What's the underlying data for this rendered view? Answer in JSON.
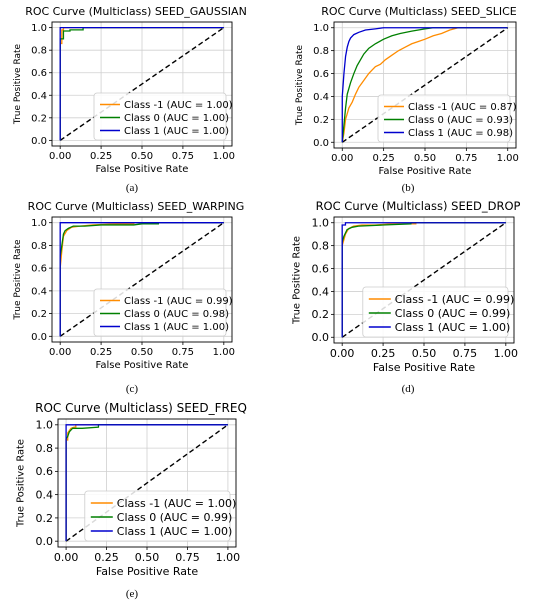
{
  "chart_data": [
    {
      "type": "line",
      "caption": "(a)",
      "title": "ROC Curve (Multiclass) SEED_GAUSSIAN",
      "xlabel": "False Positive Rate",
      "ylabel": "True Positive Rate",
      "xlim": [
        0,
        1
      ],
      "ylim": [
        0,
        1
      ],
      "xticks": [
        "0.00",
        "0.25",
        "0.50",
        "0.75",
        "1.00"
      ],
      "yticks": [
        "0.0",
        "0.2",
        "0.4",
        "0.6",
        "0.8",
        "1.0"
      ],
      "grid": true,
      "legend_position": "lower-right",
      "diagonal": true,
      "series": [
        {
          "name": "Class -1 (AUC = 1.00)",
          "color": "#ff8c00",
          "points": [
            [
              0,
              0
            ],
            [
              0,
              0.86
            ],
            [
              0.01,
              0.86
            ],
            [
              0.01,
              0.98
            ],
            [
              0.02,
              0.98
            ],
            [
              0.02,
              1.0
            ],
            [
              1,
              1
            ]
          ]
        },
        {
          "name": "Class 0 (AUC = 1.00)",
          "color": "#008000",
          "points": [
            [
              0,
              0
            ],
            [
              0,
              0.9
            ],
            [
              0.02,
              0.9
            ],
            [
              0.02,
              0.97
            ],
            [
              0.06,
              0.97
            ],
            [
              0.06,
              0.98
            ],
            [
              0.14,
              0.98
            ],
            [
              0.14,
              1.0
            ],
            [
              1,
              1
            ]
          ]
        },
        {
          "name": "Class 1 (AUC = 1.00)",
          "color": "#0000cd",
          "points": [
            [
              0,
              0
            ],
            [
              0,
              1.0
            ],
            [
              1,
              1
            ]
          ]
        }
      ]
    },
    {
      "type": "line",
      "caption": "(b)",
      "title": "ROC Curve (Multiclass) SEED_SLICE",
      "xlabel": "False Positive Rate",
      "ylabel": "True Positive Rate",
      "xlim": [
        0,
        1
      ],
      "ylim": [
        0,
        1
      ],
      "xticks": [
        "0.00",
        "0.25",
        "0.50",
        "0.75",
        "1.00"
      ],
      "yticks": [
        "0.0",
        "0.2",
        "0.4",
        "0.6",
        "0.8",
        "1.0"
      ],
      "grid": true,
      "legend_position": "lower-right",
      "diagonal": true,
      "series": [
        {
          "name": "Class -1 (AUC = 0.87)",
          "color": "#ff8c00",
          "points": [
            [
              0,
              0
            ],
            [
              0.01,
              0.08
            ],
            [
              0.02,
              0.2
            ],
            [
              0.04,
              0.3
            ],
            [
              0.06,
              0.35
            ],
            [
              0.08,
              0.42
            ],
            [
              0.1,
              0.48
            ],
            [
              0.12,
              0.52
            ],
            [
              0.14,
              0.56
            ],
            [
              0.16,
              0.6
            ],
            [
              0.18,
              0.63
            ],
            [
              0.2,
              0.66
            ],
            [
              0.23,
              0.68
            ],
            [
              0.26,
              0.72
            ],
            [
              0.3,
              0.76
            ],
            [
              0.34,
              0.8
            ],
            [
              0.38,
              0.83
            ],
            [
              0.42,
              0.86
            ],
            [
              0.46,
              0.88
            ],
            [
              0.5,
              0.9
            ],
            [
              0.55,
              0.93
            ],
            [
              0.6,
              0.95
            ],
            [
              0.65,
              0.98
            ],
            [
              0.7,
              1.0
            ],
            [
              1,
              1
            ]
          ]
        },
        {
          "name": "Class 0 (AUC = 0.93)",
          "color": "#008000",
          "points": [
            [
              0,
              0
            ],
            [
              0.01,
              0.15
            ],
            [
              0.02,
              0.3
            ],
            [
              0.03,
              0.42
            ],
            [
              0.05,
              0.52
            ],
            [
              0.07,
              0.6
            ],
            [
              0.09,
              0.67
            ],
            [
              0.11,
              0.72
            ],
            [
              0.13,
              0.77
            ],
            [
              0.16,
              0.82
            ],
            [
              0.2,
              0.86
            ],
            [
              0.25,
              0.9
            ],
            [
              0.3,
              0.93
            ],
            [
              0.35,
              0.95
            ],
            [
              0.42,
              0.97
            ],
            [
              0.5,
              0.99
            ],
            [
              0.55,
              1.0
            ],
            [
              1,
              1
            ]
          ]
        },
        {
          "name": "Class 1 (AUC = 0.98)",
          "color": "#0000cd",
          "points": [
            [
              0,
              0
            ],
            [
              0,
              0.4
            ],
            [
              0.01,
              0.6
            ],
            [
              0.02,
              0.75
            ],
            [
              0.03,
              0.83
            ],
            [
              0.04,
              0.88
            ],
            [
              0.05,
              0.91
            ],
            [
              0.07,
              0.94
            ],
            [
              0.1,
              0.96
            ],
            [
              0.14,
              0.98
            ],
            [
              0.2,
              0.99
            ],
            [
              0.25,
              1.0
            ],
            [
              1,
              1
            ]
          ]
        }
      ]
    },
    {
      "type": "line",
      "caption": "(c)",
      "title": "ROC Curve (Multiclass) SEED_WARPING",
      "xlabel": "False Positive Rate",
      "ylabel": "True Positive Rate",
      "xlim": [
        0,
        1
      ],
      "ylim": [
        0,
        1
      ],
      "xticks": [
        "0.00",
        "0.25",
        "0.50",
        "0.75",
        "1.00"
      ],
      "yticks": [
        "0.0",
        "0.2",
        "0.4",
        "0.6",
        "0.8",
        "1.0"
      ],
      "grid": true,
      "legend_position": "lower-right",
      "diagonal": true,
      "series": [
        {
          "name": "Class -1 (AUC = 0.99)",
          "color": "#ff8c00",
          "points": [
            [
              0,
              0
            ],
            [
              0,
              0.6
            ],
            [
              0.01,
              0.75
            ],
            [
              0.02,
              0.88
            ],
            [
              0.04,
              0.93
            ],
            [
              0.07,
              0.96
            ],
            [
              0.12,
              0.97
            ],
            [
              0.2,
              0.98
            ],
            [
              0.35,
              0.99
            ],
            [
              0.45,
              0.99
            ],
            [
              0.45,
              1.0
            ],
            [
              1,
              1
            ]
          ]
        },
        {
          "name": "Class 0 (AUC = 0.98)",
          "color": "#008000",
          "points": [
            [
              0,
              0
            ],
            [
              0,
              0.7
            ],
            [
              0.01,
              0.8
            ],
            [
              0.02,
              0.9
            ],
            [
              0.03,
              0.93
            ],
            [
              0.05,
              0.95
            ],
            [
              0.08,
              0.97
            ],
            [
              0.15,
              0.97
            ],
            [
              0.25,
              0.98
            ],
            [
              0.45,
              0.98
            ],
            [
              0.5,
              0.99
            ],
            [
              0.6,
              0.99
            ],
            [
              0.6,
              1.0
            ],
            [
              1,
              1
            ]
          ]
        },
        {
          "name": "Class 1 (AUC = 1.00)",
          "color": "#0000cd",
          "points": [
            [
              0,
              0
            ],
            [
              0,
              1.0
            ],
            [
              1,
              1
            ]
          ]
        }
      ]
    },
    {
      "type": "line",
      "caption": "(d)",
      "title": "ROC Curve (Multiclass) SEED_DROP",
      "xlabel": "False Positive Rate",
      "ylabel": "True Positive Rate",
      "xlim": [
        0,
        1
      ],
      "ylim": [
        0,
        1
      ],
      "xticks": [
        "0.00",
        "0.25",
        "0.50",
        "0.75",
        "1.00"
      ],
      "yticks": [
        "0.0",
        "0.2",
        "0.4",
        "0.6",
        "0.8",
        "1.0"
      ],
      "grid": true,
      "legend_position": "lower-right",
      "diagonal": true,
      "series": [
        {
          "name": "Class -1 (AUC = 0.99)",
          "color": "#ff8c00",
          "points": [
            [
              0,
              0
            ],
            [
              0,
              0.8
            ],
            [
              0.01,
              0.85
            ],
            [
              0.02,
              0.9
            ],
            [
              0.04,
              0.95
            ],
            [
              0.07,
              0.97
            ],
            [
              0.12,
              0.98
            ],
            [
              0.2,
              0.98
            ],
            [
              0.3,
              0.99
            ],
            [
              0.45,
              0.99
            ],
            [
              0.45,
              1.0
            ],
            [
              1,
              1
            ]
          ]
        },
        {
          "name": "Class 0 (AUC = 0.99)",
          "color": "#008000",
          "points": [
            [
              0,
              0
            ],
            [
              0,
              0.83
            ],
            [
              0.01,
              0.88
            ],
            [
              0.03,
              0.94
            ],
            [
              0.06,
              0.96
            ],
            [
              0.1,
              0.97
            ],
            [
              0.25,
              0.98
            ],
            [
              0.42,
              0.99
            ],
            [
              0.42,
              1.0
            ],
            [
              1,
              1
            ]
          ]
        },
        {
          "name": "Class 1 (AUC = 1.00)",
          "color": "#0000cd",
          "points": [
            [
              0,
              0
            ],
            [
              0,
              0.98
            ],
            [
              0.02,
              0.98
            ],
            [
              0.02,
              1.0
            ],
            [
              1,
              1
            ]
          ]
        }
      ]
    },
    {
      "type": "line",
      "caption": "(e)",
      "title": "ROC Curve (Multiclass) SEED_FREQ",
      "xlabel": "False Positive Rate",
      "ylabel": "True Positive Rate",
      "xlim": [
        0,
        1
      ],
      "ylim": [
        0,
        1
      ],
      "xticks": [
        "0.00",
        "0.25",
        "0.50",
        "0.75",
        "1.00"
      ],
      "yticks": [
        "0.0",
        "0.2",
        "0.4",
        "0.6",
        "0.8",
        "1.0"
      ],
      "grid": true,
      "legend_position": "lower-right",
      "diagonal": true,
      "series": [
        {
          "name": "Class -1 (AUC = 1.00)",
          "color": "#ff8c00",
          "points": [
            [
              0,
              0
            ],
            [
              0,
              0.87
            ],
            [
              0.01,
              0.87
            ],
            [
              0.01,
              0.93
            ],
            [
              0.03,
              0.97
            ],
            [
              0.05,
              0.98
            ],
            [
              0.06,
              0.98
            ],
            [
              0.06,
              1.0
            ],
            [
              1,
              1
            ]
          ]
        },
        {
          "name": "Class 0 (AUC = 0.99)",
          "color": "#008000",
          "points": [
            [
              0,
              0
            ],
            [
              0,
              0.88
            ],
            [
              0.01,
              0.9
            ],
            [
              0.02,
              0.94
            ],
            [
              0.04,
              0.97
            ],
            [
              0.1,
              0.97
            ],
            [
              0.2,
              0.98
            ],
            [
              0.2,
              1.0
            ],
            [
              1,
              1
            ]
          ]
        },
        {
          "name": "Class 1 (AUC = 1.00)",
          "color": "#0000cd",
          "points": [
            [
              0,
              0
            ],
            [
              0,
              1.0
            ],
            [
              1,
              1
            ]
          ]
        }
      ]
    }
  ]
}
